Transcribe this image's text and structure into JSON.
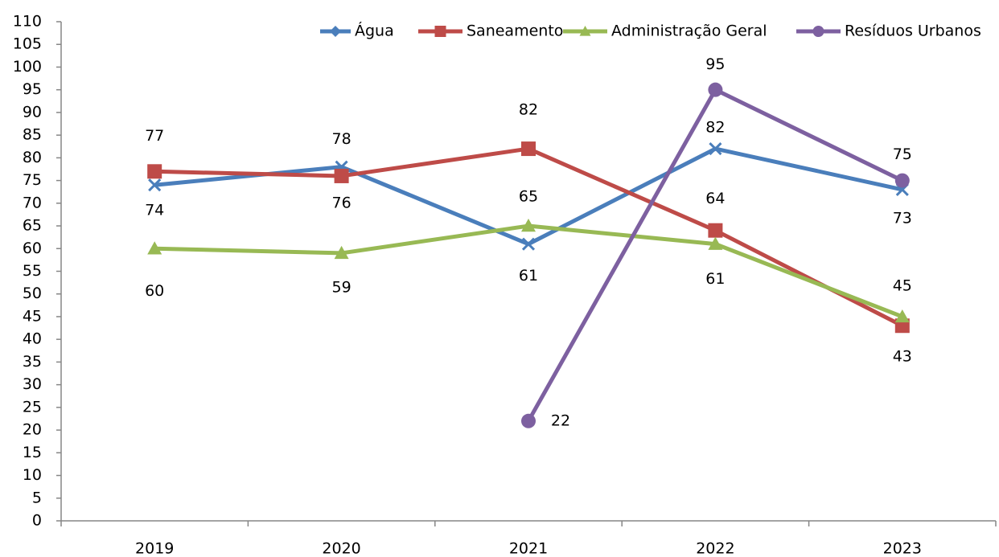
{
  "chart_data": {
    "type": "line",
    "categories": [
      "2019",
      "2020",
      "2021",
      "2022",
      "2023"
    ],
    "series": [
      {
        "name": "Água",
        "color": "#4a7ebb",
        "marker": "x",
        "values": [
          74,
          78,
          61,
          82,
          73
        ]
      },
      {
        "name": "Saneamento",
        "color": "#be4b48",
        "marker": "square",
        "values": [
          77,
          76,
          82,
          64,
          43
        ]
      },
      {
        "name": "Administração Geral",
        "color": "#98b954",
        "marker": "triangle",
        "values": [
          60,
          59,
          65,
          61,
          45
        ]
      },
      {
        "name": "Resíduos Urbanos",
        "color": "#7d60a0",
        "marker": "circle",
        "values": [
          null,
          null,
          22,
          95,
          75
        ]
      }
    ],
    "ylim": [
      0,
      110
    ],
    "yticks": [
      0,
      5,
      10,
      15,
      20,
      25,
      30,
      35,
      40,
      45,
      50,
      55,
      60,
      65,
      70,
      75,
      80,
      85,
      90,
      95,
      100,
      105,
      110
    ],
    "legend": "top-right",
    "data_labels": true
  }
}
